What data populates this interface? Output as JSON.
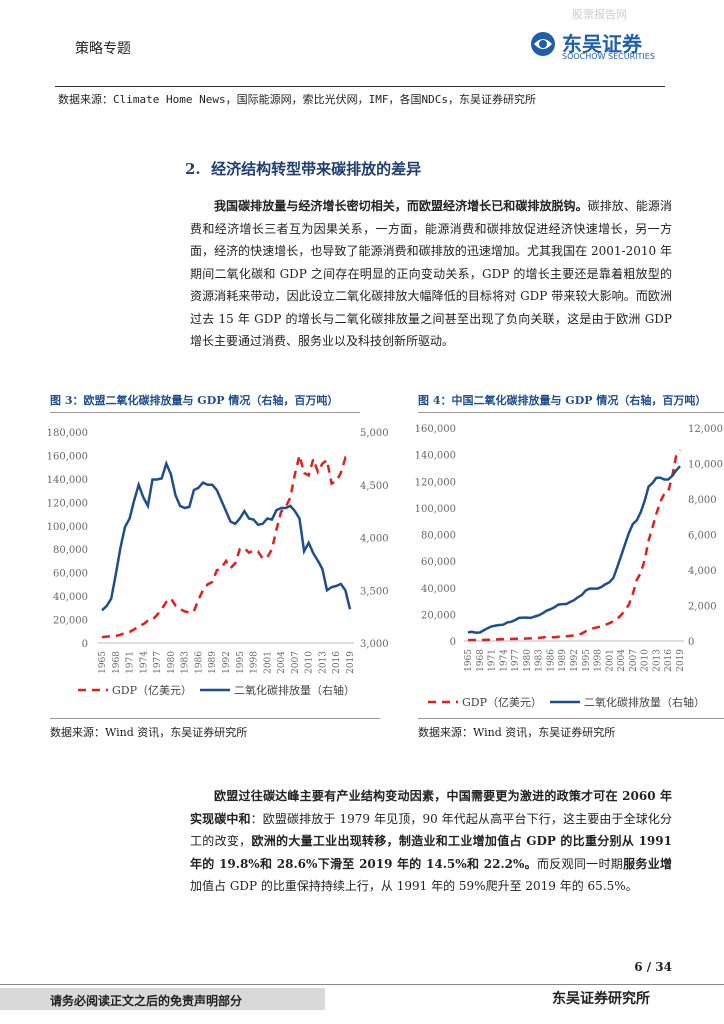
{
  "header": {
    "title": "策略专题",
    "logo_cn": "东吴证券",
    "logo_en": "SOOCHOW SECURITIES",
    "watermark": "股票报告网"
  },
  "source_top": "数据来源：Climate Home News，国际能源网，索比光伏网，IMF，各国NDCs，东吴证券研究所",
  "section_title": "2.  经济结构转型带来碳排放的差异",
  "paragraphs": [
    [
      {
        "text": "我国碳排放量与经济增长密切相关，而欧盟经济增长已和碳排放脱钩。",
        "bold": true
      },
      {
        "text": "碳排放、能源消费和经济增长三者互为因果关系，一方面，能源消费和碳排放促进经济快速增长，另一方面，经济的快速增长，也导致了能源消费和碳排放的迅速增加。尤其我国在 2001-2010 年期间二氧化碳和 GDP 之间存在明显的正向变动关系，GDP 的增长主要还是靠着粗放型的资源消耗来带动，因此设立二氧化碳排放大幅降低的目标将对 GDP 带来较大影响。而欧洲过去 15 年 GDP 的增长与二氧化碳排放量之间甚至出现了负向关联，这是由于欧洲 GDP 增长主要通过消费、服务业以及科技创新所驱动。",
        "bold": false
      }
    ],
    [
      {
        "text": "欧盟过往碳达峰主要有产业结构变动因素，中国需要更为激进的政策才可在 2060 年实现碳中和",
        "bold": true
      },
      {
        "text": "：欧盟碳排放于 1979 年见顶，90 年代起从高平台下行，这主要由于全球化分工的改变，",
        "bold": false
      },
      {
        "text": "欧洲的大量工业出现转移，制造业和工业增加值占 GDP 的比重分别从 1991 年的 19.8%和 28.6%下滑至 2019 年的 14.5%和 22.2%。",
        "bold": true
      },
      {
        "text": "而反观同一时期",
        "bold": false
      },
      {
        "text": "服务业增",
        "bold": true
      },
      {
        "text": "加值占 GDP 的比重保持持续上行，从 1991 年的 59%爬升至 2019 年的 65.5%。",
        "bold": false
      }
    ]
  ],
  "chart_data": [
    {
      "type": "line",
      "title": "图 3：欧盟二氧化碳排放量与 GDP 情况（右轴，百万吨）",
      "source": "数据来源：Wind 资讯，东吴证券研究所",
      "x": [
        1965,
        1966,
        1967,
        1968,
        1969,
        1970,
        1971,
        1972,
        1973,
        1974,
        1975,
        1976,
        1977,
        1978,
        1979,
        1980,
        1981,
        1982,
        1983,
        1984,
        1985,
        1986,
        1987,
        1988,
        1989,
        1990,
        1991,
        1992,
        1993,
        1994,
        1995,
        1996,
        1997,
        1998,
        1999,
        2000,
        2001,
        2002,
        2003,
        2004,
        2005,
        2006,
        2007,
        2008,
        2009,
        2010,
        2011,
        2012,
        2013,
        2014,
        2015,
        2016,
        2017,
        2018,
        2019
      ],
      "xlim": [
        1965,
        2019
      ],
      "xticks": [
        1965,
        1968,
        1971,
        1974,
        1977,
        1980,
        1983,
        1986,
        1989,
        1992,
        1995,
        1998,
        2001,
        2004,
        2007,
        2010,
        2013,
        2016,
        2019
      ],
      "ylim": [
        0,
        180000
      ],
      "yticks": [
        0,
        {
          "value": 20000,
          "label": "20,000"
        },
        {
          "value": 40000,
          "label": "40,000"
        },
        {
          "value": 60000,
          "label": "60,000"
        },
        {
          "value": 80000,
          "label": "80,000"
        },
        {
          "value": 100000,
          "label": "100,000"
        },
        {
          "value": 120000,
          "label": "120,000"
        },
        {
          "value": 140000,
          "label": "140,000"
        },
        {
          "value": 160000,
          "label": "160,000"
        },
        {
          "value": 180000,
          "label": "180,000"
        }
      ],
      "y2lim": [
        3000,
        5000
      ],
      "y2ticks": [
        {
          "value": 3000,
          "label": "3,000"
        },
        {
          "value": 3500,
          "label": "3,500"
        },
        {
          "value": 4000,
          "label": "4,000"
        },
        {
          "value": 4500,
          "label": "4,500"
        },
        {
          "value": 5000,
          "label": "5,000"
        }
      ],
      "grid": false,
      "legend": "bottom",
      "series": [
        {
          "name": "GDP（亿美元）",
          "color": "#e0201b",
          "style": "dashed",
          "values": [
            5000,
            5500,
            5800,
            6000,
            7000,
            8500,
            9500,
            11500,
            14500,
            16000,
            19000,
            20000,
            24000,
            29000,
            35000,
            38000,
            32000,
            29000,
            27000,
            26000,
            27000,
            37000,
            45000,
            50000,
            52000,
            62000,
            64000,
            70000,
            64000,
            68000,
            80000,
            81000,
            77000,
            79000,
            78000,
            72000,
            73000,
            80000,
            97000,
            112000,
            116000,
            124000,
            144000,
            160000,
            145000,
            143000,
            157000,
            146000,
            153000,
            156000,
            136000,
            138000,
            145000,
            158000,
            155000
          ]
        },
        {
          "name": "二氧化碳排放量（右轴）",
          "color": "#1f4e8c",
          "style": "solid",
          "axis": "y2",
          "values": [
            3310,
            3350,
            3420,
            3650,
            3900,
            4100,
            4180,
            4350,
            4500,
            4380,
            4300,
            4550,
            4550,
            4560,
            4700,
            4600,
            4400,
            4300,
            4280,
            4290,
            4450,
            4470,
            4520,
            4500,
            4500,
            4450,
            4350,
            4250,
            4150,
            4130,
            4180,
            4250,
            4180,
            4170,
            4120,
            4130,
            4180,
            4170,
            4260,
            4280,
            4280,
            4300,
            4250,
            4180,
            3870,
            3950,
            3850,
            3780,
            3700,
            3500,
            3530,
            3540,
            3560,
            3500,
            3320
          ]
        }
      ]
    },
    {
      "type": "line",
      "title": "图 4：中国二氧化碳排放量与 GDP 情况（右轴，百万吨）",
      "source": "数据来源：Wind 资讯，东吴证券研究所",
      "x": [
        1965,
        1966,
        1967,
        1968,
        1969,
        1970,
        1971,
        1972,
        1973,
        1974,
        1975,
        1976,
        1977,
        1978,
        1979,
        1980,
        1981,
        1982,
        1983,
        1984,
        1985,
        1986,
        1987,
        1988,
        1989,
        1990,
        1991,
        1992,
        1993,
        1994,
        1995,
        1996,
        1997,
        1998,
        1999,
        2000,
        2001,
        2002,
        2003,
        2004,
        2005,
        2006,
        2007,
        2008,
        2009,
        2010,
        2011,
        2012,
        2013,
        2014,
        2015,
        2016,
        2017,
        2018,
        2019
      ],
      "xlim": [
        1965,
        2019
      ],
      "xticks": [
        1965,
        1968,
        1971,
        1974,
        1977,
        1980,
        1983,
        1986,
        1989,
        1992,
        1995,
        1998,
        2001,
        2004,
        2007,
        2010,
        2013,
        2016,
        2019
      ],
      "ylim": [
        0,
        160000
      ],
      "yticks": [
        0,
        {
          "value": 20000,
          "label": "20,000"
        },
        {
          "value": 40000,
          "label": "40,000"
        },
        {
          "value": 60000,
          "label": "60,000"
        },
        {
          "value": 80000,
          "label": "80,000"
        },
        {
          "value": 100000,
          "label": "100,000"
        },
        {
          "value": 120000,
          "label": "120,000"
        },
        {
          "value": 140000,
          "label": "140,000"
        },
        {
          "value": 160000,
          "label": "160,000"
        }
      ],
      "y2lim": [
        0,
        12000
      ],
      "y2ticks": [
        0,
        {
          "value": 2000,
          "label": "2,000"
        },
        {
          "value": 4000,
          "label": "4,000"
        },
        {
          "value": 6000,
          "label": "6,000"
        },
        {
          "value": 8000,
          "label": "8,000"
        },
        {
          "value": 10000,
          "label": "10,000"
        },
        {
          "value": 12000,
          "label": "12,000"
        }
      ],
      "grid": false,
      "legend": "bottom",
      "series": [
        {
          "name": "GDP（亿美元）",
          "color": "#e0201b",
          "style": "dashed",
          "values": [
            704,
            767,
            727,
            708,
            797,
            926,
            998,
            1137,
            1385,
            1441,
            1634,
            1539,
            1750,
            1495,
            1783,
            1911,
            1960,
            2051,
            2302,
            2599,
            3094,
            3007,
            2729,
            3123,
            3477,
            3609,
            3833,
            4269,
            4447,
            5643,
            7345,
            8637,
            9615,
            10291,
            10940,
            12113,
            13394,
            14705,
            16603,
            19553,
            22860,
            27521,
            35522,
            45982,
            51100,
            60872,
            75515,
            85322,
            95704,
            104757,
            110616,
            112333,
            123104,
            138948,
            143429
          ]
        },
        {
          "name": "二氧化碳排放量（右轴）",
          "color": "#1f4e8c",
          "style": "solid",
          "axis": "y2",
          "values": [
            480,
            520,
            470,
            480,
            600,
            720,
            820,
            870,
            900,
            920,
            1050,
            1080,
            1180,
            1300,
            1320,
            1320,
            1300,
            1380,
            1450,
            1560,
            1700,
            1790,
            1900,
            2050,
            2080,
            2080,
            2200,
            2300,
            2460,
            2600,
            2850,
            2950,
            2950,
            2950,
            3050,
            3200,
            3300,
            3550,
            4150,
            4800,
            5450,
            6100,
            6600,
            6800,
            7250,
            7900,
            8700,
            8900,
            9200,
            9200,
            9100,
            9100,
            9300,
            9600,
            9850
          ]
        }
      ]
    }
  ],
  "page_number": "6 / 34",
  "footer": {
    "disclaimer": "请务必阅读正文之后的免责声明部分",
    "org": "东吴证券研究所"
  }
}
